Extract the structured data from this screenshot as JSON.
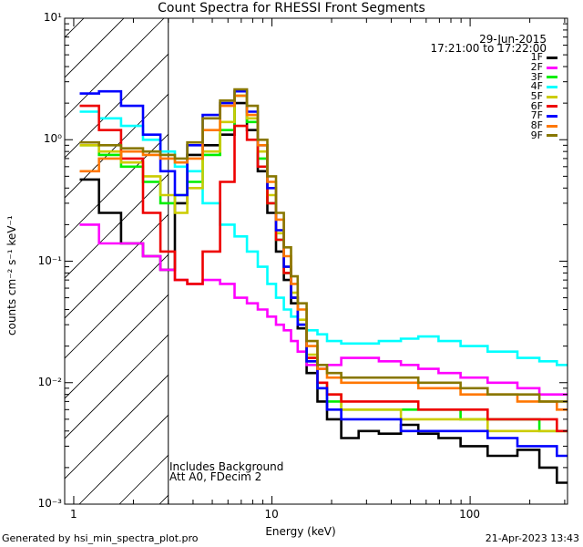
{
  "chart_data": {
    "type": "line",
    "title": "Count Spectra for RHESSI Front Segments",
    "xlabel": "Energy (keV)",
    "ylabel": "counts cm⁻² s⁻¹ keV⁻¹",
    "xscale": "log",
    "yscale": "log",
    "xlim": [
      0.9,
      310
    ],
    "ylim": [
      0.001,
      10
    ],
    "x_ticks": [
      {
        "value": 1,
        "label": "1"
      },
      {
        "value": 10,
        "label": "10"
      },
      {
        "value": 100,
        "label": "100"
      }
    ],
    "y_ticks": [
      {
        "value": 10,
        "label": "10¹"
      },
      {
        "value": 1,
        "label": "10⁰"
      },
      {
        "value": 0.1,
        "label": "10⁻¹"
      },
      {
        "value": 0.01,
        "label": "10⁻²"
      },
      {
        "value": 0.001,
        "label": "10⁻³"
      }
    ],
    "hatched_region_upper_keV": 3,
    "legend_position": "top-right",
    "series": [
      {
        "name": "1F",
        "color": "#000000",
        "points": [
          [
            1.2,
            0.47
          ],
          [
            1.5,
            0.25
          ],
          [
            2,
            0.14
          ],
          [
            2.5,
            0.11
          ],
          [
            3,
            0.085
          ],
          [
            3.5,
            0.3
          ],
          [
            4,
            0.75
          ],
          [
            5,
            0.9
          ],
          [
            6,
            1.1
          ],
          [
            7,
            2.0
          ],
          [
            8,
            1.2
          ],
          [
            9,
            0.55
          ],
          [
            10,
            0.25
          ],
          [
            11,
            0.12
          ],
          [
            12,
            0.07
          ],
          [
            13,
            0.045
          ],
          [
            14,
            0.028
          ],
          [
            16,
            0.012
          ],
          [
            18,
            0.007
          ],
          [
            20,
            0.005
          ],
          [
            25,
            0.0035
          ],
          [
            30,
            0.004
          ],
          [
            40,
            0.0038
          ],
          [
            50,
            0.0045
          ],
          [
            60,
            0.0038
          ],
          [
            80,
            0.0035
          ],
          [
            100,
            0.003
          ],
          [
            150,
            0.0025
          ],
          [
            200,
            0.0028
          ],
          [
            250,
            0.002
          ],
          [
            300,
            0.0015
          ]
        ]
      },
      {
        "name": "2F",
        "color": "#ff00ff",
        "points": [
          [
            1.2,
            0.2
          ],
          [
            1.5,
            0.14
          ],
          [
            2,
            0.14
          ],
          [
            2.5,
            0.11
          ],
          [
            3,
            0.085
          ],
          [
            3.5,
            0.07
          ],
          [
            4,
            0.065
          ],
          [
            5,
            0.07
          ],
          [
            6,
            0.065
          ],
          [
            7,
            0.05
          ],
          [
            8,
            0.045
          ],
          [
            9,
            0.04
          ],
          [
            10,
            0.035
          ],
          [
            11,
            0.03
          ],
          [
            12,
            0.027
          ],
          [
            13,
            0.022
          ],
          [
            14,
            0.018
          ],
          [
            16,
            0.014
          ],
          [
            18,
            0.013
          ],
          [
            20,
            0.014
          ],
          [
            25,
            0.016
          ],
          [
            30,
            0.016
          ],
          [
            40,
            0.015
          ],
          [
            50,
            0.014
          ],
          [
            60,
            0.013
          ],
          [
            80,
            0.012
          ],
          [
            100,
            0.011
          ],
          [
            150,
            0.01
          ],
          [
            200,
            0.009
          ],
          [
            250,
            0.008
          ],
          [
            300,
            0.008
          ]
        ]
      },
      {
        "name": "3F",
        "color": "#00ee00",
        "points": [
          [
            1.2,
            0.9
          ],
          [
            1.5,
            0.75
          ],
          [
            2,
            0.6
          ],
          [
            2.5,
            0.45
          ],
          [
            3,
            0.3
          ],
          [
            3.5,
            0.35
          ],
          [
            4,
            0.45
          ],
          [
            5,
            0.75
          ],
          [
            6,
            1.2
          ],
          [
            7,
            2.3
          ],
          [
            8,
            1.4
          ],
          [
            9,
            0.7
          ],
          [
            10,
            0.3
          ],
          [
            11,
            0.15
          ],
          [
            12,
            0.08
          ],
          [
            13,
            0.05
          ],
          [
            14,
            0.03
          ],
          [
            16,
            0.015
          ],
          [
            18,
            0.009
          ],
          [
            20,
            0.007
          ],
          [
            25,
            0.006
          ],
          [
            30,
            0.006
          ],
          [
            40,
            0.006
          ],
          [
            50,
            0.006
          ],
          [
            60,
            0.006
          ],
          [
            80,
            0.006
          ],
          [
            100,
            0.005
          ],
          [
            150,
            0.005
          ],
          [
            200,
            0.005
          ],
          [
            250,
            0.004
          ],
          [
            300,
            0.004
          ]
        ]
      },
      {
        "name": "4F",
        "color": "#00ffff",
        "points": [
          [
            1.2,
            1.7
          ],
          [
            1.5,
            1.5
          ],
          [
            2,
            1.3
          ],
          [
            2.5,
            1.0
          ],
          [
            3,
            0.8
          ],
          [
            3.5,
            0.6
          ],
          [
            4,
            0.55
          ],
          [
            5,
            0.3
          ],
          [
            6,
            0.2
          ],
          [
            7,
            0.16
          ],
          [
            8,
            0.12
          ],
          [
            9,
            0.09
          ],
          [
            10,
            0.065
          ],
          [
            11,
            0.05
          ],
          [
            12,
            0.04
          ],
          [
            13,
            0.035
          ],
          [
            14,
            0.03
          ],
          [
            16,
            0.027
          ],
          [
            18,
            0.025
          ],
          [
            20,
            0.022
          ],
          [
            25,
            0.021
          ],
          [
            30,
            0.021
          ],
          [
            40,
            0.022
          ],
          [
            50,
            0.023
          ],
          [
            60,
            0.024
          ],
          [
            80,
            0.022
          ],
          [
            100,
            0.02
          ],
          [
            150,
            0.018
          ],
          [
            200,
            0.016
          ],
          [
            250,
            0.015
          ],
          [
            300,
            0.014
          ]
        ]
      },
      {
        "name": "5F",
        "color": "#cccc00",
        "points": [
          [
            1.2,
            0.9
          ],
          [
            1.5,
            0.8
          ],
          [
            2,
            0.65
          ],
          [
            2.5,
            0.5
          ],
          [
            3,
            0.35
          ],
          [
            3.5,
            0.25
          ],
          [
            4,
            0.4
          ],
          [
            5,
            0.8
          ],
          [
            6,
            1.4
          ],
          [
            7,
            2.3
          ],
          [
            8,
            1.5
          ],
          [
            9,
            0.8
          ],
          [
            10,
            0.35
          ],
          [
            11,
            0.17
          ],
          [
            12,
            0.09
          ],
          [
            13,
            0.055
          ],
          [
            14,
            0.033
          ],
          [
            16,
            0.017
          ],
          [
            18,
            0.01
          ],
          [
            20,
            0.008
          ],
          [
            25,
            0.006
          ],
          [
            30,
            0.006
          ],
          [
            40,
            0.006
          ],
          [
            50,
            0.005
          ],
          [
            60,
            0.005
          ],
          [
            80,
            0.005
          ],
          [
            100,
            0.005
          ],
          [
            150,
            0.004
          ],
          [
            200,
            0.004
          ],
          [
            250,
            0.004
          ],
          [
            300,
            0.004
          ]
        ]
      },
      {
        "name": "6F",
        "color": "#ee0000",
        "points": [
          [
            1.2,
            1.9
          ],
          [
            1.5,
            1.2
          ],
          [
            2,
            0.7
          ],
          [
            2.5,
            0.25
          ],
          [
            3,
            0.12
          ],
          [
            3.5,
            0.07
          ],
          [
            4,
            0.065
          ],
          [
            5,
            0.12
          ],
          [
            6,
            0.45
          ],
          [
            7,
            1.3
          ],
          [
            8,
            1.0
          ],
          [
            9,
            0.6
          ],
          [
            10,
            0.3
          ],
          [
            11,
            0.15
          ],
          [
            12,
            0.08
          ],
          [
            13,
            0.05
          ],
          [
            14,
            0.03
          ],
          [
            16,
            0.016
          ],
          [
            18,
            0.01
          ],
          [
            20,
            0.008
          ],
          [
            25,
            0.007
          ],
          [
            30,
            0.007
          ],
          [
            40,
            0.007
          ],
          [
            50,
            0.007
          ],
          [
            60,
            0.006
          ],
          [
            80,
            0.006
          ],
          [
            100,
            0.006
          ],
          [
            150,
            0.005
          ],
          [
            200,
            0.005
          ],
          [
            250,
            0.005
          ],
          [
            300,
            0.004
          ]
        ]
      },
      {
        "name": "7F",
        "color": "#0000ff",
        "points": [
          [
            1.2,
            2.4
          ],
          [
            1.5,
            2.5
          ],
          [
            2,
            1.9
          ],
          [
            2.5,
            1.1
          ],
          [
            3,
            0.55
          ],
          [
            3.5,
            0.35
          ],
          [
            4,
            0.9
          ],
          [
            5,
            1.6
          ],
          [
            6,
            2.0
          ],
          [
            7,
            2.5
          ],
          [
            8,
            1.7
          ],
          [
            9,
            0.9
          ],
          [
            10,
            0.4
          ],
          [
            11,
            0.18
          ],
          [
            12,
            0.09
          ],
          [
            13,
            0.05
          ],
          [
            14,
            0.03
          ],
          [
            16,
            0.015
          ],
          [
            18,
            0.009
          ],
          [
            20,
            0.006
          ],
          [
            25,
            0.005
          ],
          [
            30,
            0.005
          ],
          [
            40,
            0.005
          ],
          [
            50,
            0.004
          ],
          [
            60,
            0.004
          ],
          [
            80,
            0.004
          ],
          [
            100,
            0.004
          ],
          [
            150,
            0.0035
          ],
          [
            200,
            0.003
          ],
          [
            250,
            0.003
          ],
          [
            300,
            0.0025
          ]
        ]
      },
      {
        "name": "8F",
        "color": "#ff7700",
        "points": [
          [
            1.2,
            0.55
          ],
          [
            1.5,
            0.7
          ],
          [
            2,
            0.8
          ],
          [
            2.5,
            0.75
          ],
          [
            3,
            0.7
          ],
          [
            3.5,
            0.65
          ],
          [
            4,
            0.7
          ],
          [
            5,
            1.2
          ],
          [
            6,
            1.9
          ],
          [
            7,
            2.3
          ],
          [
            8,
            1.6
          ],
          [
            9,
            0.9
          ],
          [
            10,
            0.45
          ],
          [
            11,
            0.22
          ],
          [
            12,
            0.11
          ],
          [
            13,
            0.065
          ],
          [
            14,
            0.04
          ],
          [
            16,
            0.02
          ],
          [
            18,
            0.013
          ],
          [
            20,
            0.011
          ],
          [
            25,
            0.01
          ],
          [
            30,
            0.01
          ],
          [
            40,
            0.01
          ],
          [
            50,
            0.01
          ],
          [
            60,
            0.009
          ],
          [
            80,
            0.009
          ],
          [
            100,
            0.008
          ],
          [
            150,
            0.008
          ],
          [
            200,
            0.007
          ],
          [
            250,
            0.007
          ],
          [
            300,
            0.006
          ]
        ]
      },
      {
        "name": "9F",
        "color": "#887700",
        "points": [
          [
            1.2,
            0.95
          ],
          [
            1.5,
            0.9
          ],
          [
            2,
            0.85
          ],
          [
            2.5,
            0.8
          ],
          [
            3,
            0.75
          ],
          [
            3.5,
            0.7
          ],
          [
            4,
            0.95
          ],
          [
            5,
            1.5
          ],
          [
            6,
            2.1
          ],
          [
            7,
            2.6
          ],
          [
            8,
            1.9
          ],
          [
            9,
            1.0
          ],
          [
            10,
            0.5
          ],
          [
            11,
            0.25
          ],
          [
            12,
            0.13
          ],
          [
            13,
            0.075
          ],
          [
            14,
            0.045
          ],
          [
            16,
            0.022
          ],
          [
            18,
            0.014
          ],
          [
            20,
            0.012
          ],
          [
            25,
            0.011
          ],
          [
            30,
            0.011
          ],
          [
            40,
            0.011
          ],
          [
            50,
            0.011
          ],
          [
            60,
            0.01
          ],
          [
            80,
            0.01
          ],
          [
            100,
            0.009
          ],
          [
            150,
            0.008
          ],
          [
            200,
            0.008
          ],
          [
            250,
            0.007
          ],
          [
            300,
            0.007
          ]
        ]
      }
    ]
  },
  "header": {
    "date": "29-Jun-2015",
    "time_range": "17:21:00 to 17:22:00"
  },
  "annotations": {
    "background": "Includes Background",
    "attenuator": "Att A0, FDecim 2"
  },
  "footer": {
    "generated_by": "Generated by hsi_min_spectra_plot.pro",
    "timestamp": "21-Apr-2023 13:43"
  }
}
